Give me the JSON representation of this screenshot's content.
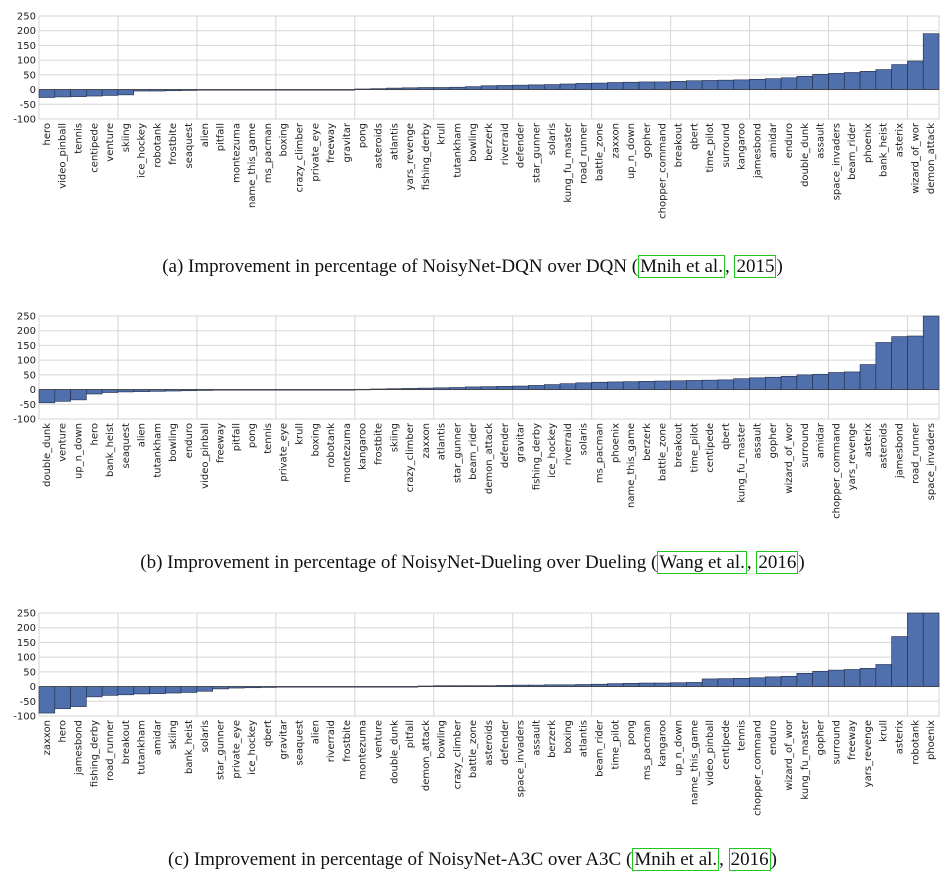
{
  "chart_data": [
    {
      "type": "bar",
      "ylim": [
        -100,
        250
      ],
      "yticks": [
        -100,
        -50,
        0,
        50,
        100,
        150,
        200,
        250
      ],
      "grid": true,
      "caption": {
        "prefix": "(a)  Improvement in percentage of NoisyNet-DQN over DQN (",
        "cite_author": "Mnih et al.",
        "sep": ", ",
        "cite_year": "2015",
        "suffix": ")"
      },
      "categories": [
        "hero",
        "video_pinball",
        "tennis",
        "centipede",
        "venture",
        "skiing",
        "ice_hockey",
        "robotank",
        "frostbite",
        "seaquest",
        "alien",
        "pitfall",
        "montezuma",
        "name_this_game",
        "ms_pacman",
        "boxing",
        "crazy_climber",
        "private_eye",
        "freeway",
        "gravitar",
        "pong",
        "asteroids",
        "atlantis",
        "yars_revenge",
        "fishing_derby",
        "krull",
        "tutankham",
        "bowling",
        "berzerk",
        "riverraid",
        "defender",
        "star_gunner",
        "solaris",
        "kung_fu_master",
        "road_runner",
        "battle_zone",
        "zaxxon",
        "up_n_down",
        "gopher",
        "chopper_command",
        "breakout",
        "qbert",
        "time_pilot",
        "surround",
        "kangaroo",
        "jamesbond",
        "amidar",
        "enduro",
        "double_dunk",
        "assault",
        "space_invaders",
        "beam_rider",
        "phoenix",
        "bank_heist",
        "asterix",
        "wizard_of_wor",
        "demon_attack"
      ],
      "values": [
        -27,
        -25,
        -24,
        -22,
        -20,
        -18,
        -5,
        -5,
        -4,
        -3,
        -1,
        0,
        0,
        0,
        0,
        0,
        0,
        0,
        0,
        0,
        2,
        3,
        5,
        6,
        7,
        7,
        8,
        10,
        13,
        14,
        15,
        16,
        17,
        19,
        21,
        22,
        24,
        25,
        26,
        26,
        28,
        30,
        31,
        32,
        33,
        35,
        37,
        40,
        45,
        52,
        55,
        58,
        62,
        68,
        85,
        97,
        190
      ]
    },
    {
      "type": "bar",
      "ylim": [
        -100,
        250
      ],
      "yticks": [
        -100,
        -50,
        0,
        50,
        100,
        150,
        200,
        250
      ],
      "grid": true,
      "caption": {
        "prefix": "(b)  Improvement in percentage of NoisyNet-Dueling over Dueling (",
        "cite_author": "Wang et al.",
        "sep": ", ",
        "cite_year": "2016",
        "suffix": ")"
      },
      "categories": [
        "double_dunk",
        "venture",
        "up_n_down",
        "hero",
        "bank_heist",
        "seaquest",
        "alien",
        "tutankham",
        "bowling",
        "enduro",
        "video_pinball",
        "freeway",
        "pitfall",
        "pong",
        "tennis",
        "private_eye",
        "krull",
        "boxing",
        "robotank",
        "montezuma",
        "kangaroo",
        "frostbite",
        "skiing",
        "crazy_climber",
        "zaxxon",
        "atlantis",
        "star_gunner",
        "beam_rider",
        "demon_attack",
        "defender",
        "gravitar",
        "fishing_derby",
        "ice_hockey",
        "riverraid",
        "solaris",
        "ms_pacman",
        "phoenix",
        "name_this_game",
        "berzerk",
        "battle_zone",
        "breakout",
        "time_pilot",
        "centipede",
        "qbert",
        "kung_fu_master",
        "assault",
        "gopher",
        "wizard_of_wor",
        "surround",
        "amidar",
        "chopper_command",
        "yars_revenge",
        "asterix",
        "asteroids",
        "jamesbond",
        "road_runner",
        "space_invaders"
      ],
      "values": [
        -45,
        -40,
        -35,
        -15,
        -10,
        -8,
        -7,
        -6,
        -5,
        -4,
        -3,
        -2,
        0,
        0,
        0,
        0,
        0,
        0,
        0,
        0,
        1,
        2,
        3,
        4,
        5,
        6,
        7,
        9,
        10,
        11,
        12,
        14,
        17,
        20,
        23,
        25,
        26,
        27,
        28,
        29,
        30,
        31,
        32,
        33,
        37,
        40,
        42,
        45,
        50,
        52,
        58,
        60,
        85,
        160,
        180,
        182,
        250
      ]
    },
    {
      "type": "bar",
      "ylim": [
        -100,
        250
      ],
      "yticks": [
        -100,
        -50,
        0,
        50,
        100,
        150,
        200,
        250
      ],
      "grid": true,
      "caption": {
        "prefix": "(c)  Improvement in percentage of NoisyNet-A3C over A3C (",
        "cite_author": "Mnih et al.",
        "sep": ", ",
        "cite_year": "2016",
        "suffix": ")"
      },
      "categories": [
        "zaxxon",
        "hero",
        "jamesbond",
        "fishing_derby",
        "road_runner",
        "breakout",
        "tutankham",
        "amidar",
        "skiing",
        "bank_heist",
        "solaris",
        "star_gunner",
        "private_eye",
        "ice_hockey",
        "qbert",
        "gravitar",
        "seaquest",
        "alien",
        "riverraid",
        "frostbite",
        "montezuma",
        "venture",
        "double_dunk",
        "pitfall",
        "demon_attack",
        "bowling",
        "crazy_climber",
        "battle_zone",
        "asteroids",
        "defender",
        "space_invaders",
        "assault",
        "berzerk",
        "boxing",
        "atlantis",
        "beam_rider",
        "time_pilot",
        "pong",
        "ms_pacman",
        "kangaroo",
        "up_n_down",
        "name_this_game",
        "video_pinball",
        "centipede",
        "tennis",
        "chopper_command",
        "enduro",
        "wizard_of_wor",
        "kung_fu_master",
        "gopher",
        "surround",
        "freeway",
        "yars_revenge",
        "krull",
        "asterix",
        "robotank",
        "phoenix"
      ],
      "values": [
        -90,
        -75,
        -68,
        -35,
        -30,
        -28,
        -25,
        -24,
        -22,
        -20,
        -16,
        -8,
        -5,
        -4,
        -3,
        -2,
        -2,
        -1,
        -1,
        -1,
        0,
        0,
        0,
        0,
        2,
        3,
        3,
        3,
        3,
        4,
        5,
        5,
        6,
        6,
        7,
        8,
        10,
        11,
        12,
        12,
        13,
        14,
        26,
        27,
        28,
        30,
        33,
        35,
        45,
        52,
        56,
        58,
        62,
        75,
        170,
        250,
        250
      ]
    }
  ],
  "colors": {
    "bar": "#4f6fad",
    "bar_stroke": "#1f2a44",
    "grid": "#d6d6d6",
    "axis": "#888888",
    "cite_box": "#1fc81f"
  }
}
